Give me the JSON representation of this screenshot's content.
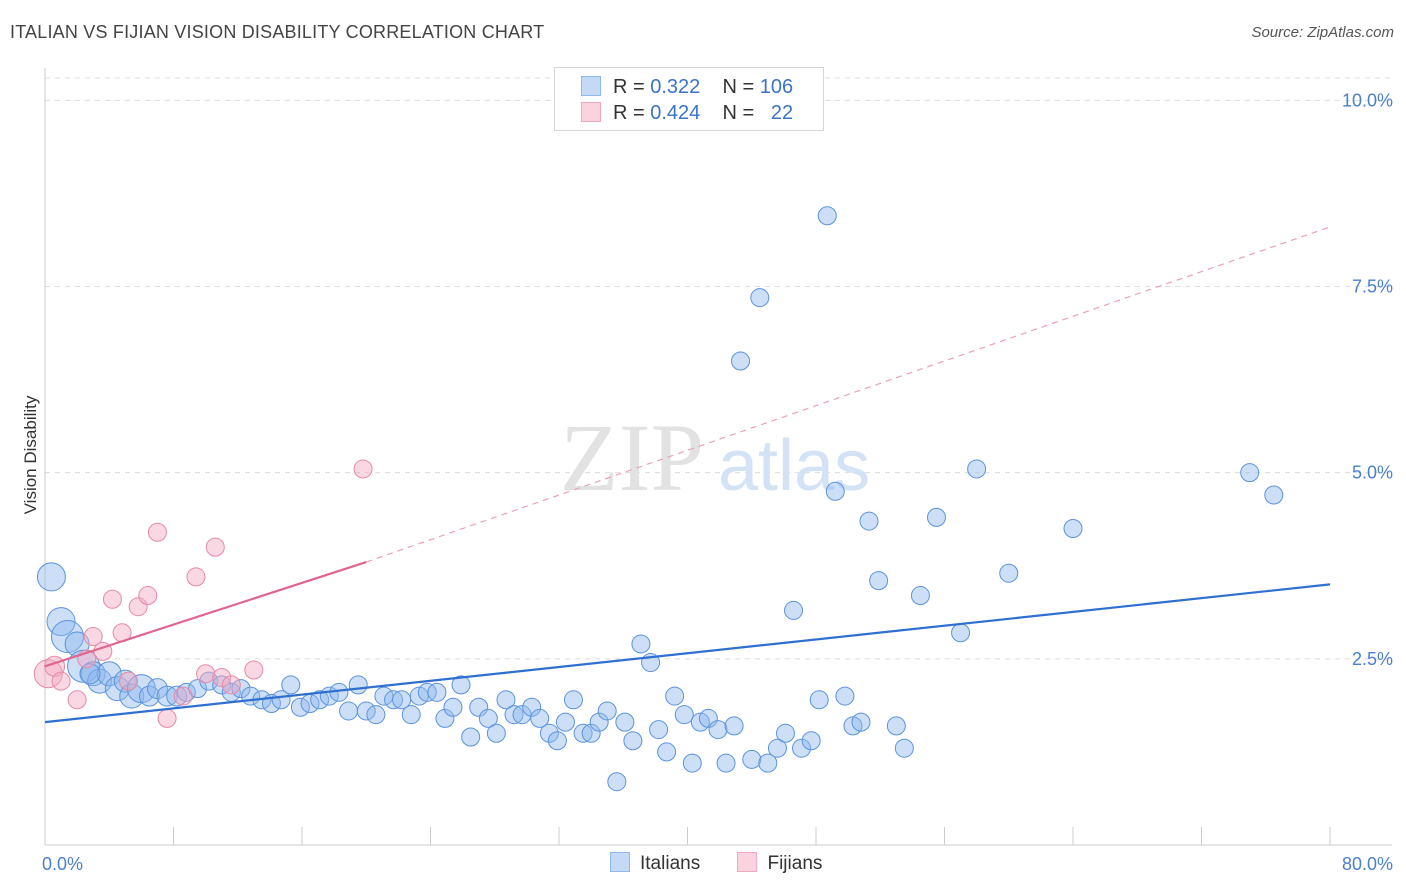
{
  "header": {
    "title": "ITALIAN VS FIJIAN VISION DISABILITY CORRELATION CHART",
    "source": "Source: ZipAtlas.com"
  },
  "watermark": {
    "zip": "ZIP",
    "atlas": "atlas"
  },
  "legend": {
    "rows": [
      {
        "r_label": "R =",
        "r_value": "0.322",
        "n_label": "N =",
        "n_value": "106",
        "color": "#8fb8ee"
      },
      {
        "r_label": "R =",
        "r_value": "0.424",
        "n_label": "N =",
        "n_value": "22",
        "color": "#f4a8c0"
      }
    ]
  },
  "bottom_legend": {
    "items": [
      {
        "label": "Italians",
        "color": "#8fb8ee"
      },
      {
        "label": "Fijians",
        "color": "#f4a8c0"
      }
    ]
  },
  "chart_data": {
    "type": "scatter",
    "title": "ITALIAN VS FIJIAN VISION DISABILITY CORRELATION CHART",
    "xlabel": "",
    "ylabel": "Vision Disability",
    "xlim": [
      0,
      80
    ],
    "ylim": [
      0,
      10.3
    ],
    "x_tick_labels": [
      "0.0%",
      "80.0%"
    ],
    "y_ticks": [
      2.5,
      5.0,
      7.5,
      10.0
    ],
    "y_tick_labels": [
      "2.5%",
      "5.0%",
      "7.5%",
      "10.0%"
    ],
    "grid": true,
    "legend_position": "top-center",
    "series": [
      {
        "name": "Italians",
        "color": "#8fb8ee",
        "stroke": "#5b93dc",
        "trend": {
          "x": [
            0,
            80
          ],
          "y": [
            1.65,
            3.5
          ]
        },
        "points": [
          [
            0.4,
            3.6,
            14
          ],
          [
            1.0,
            3.0,
            14
          ],
          [
            1.4,
            2.8,
            16
          ],
          [
            2.0,
            2.7,
            12
          ],
          [
            2.4,
            2.4,
            16
          ],
          [
            3.0,
            2.3,
            12
          ],
          [
            3.4,
            2.2,
            12
          ],
          [
            4.0,
            2.3,
            12
          ],
          [
            4.5,
            2.1,
            12
          ],
          [
            5.0,
            2.2,
            11
          ],
          [
            5.4,
            2.0,
            12
          ],
          [
            6.0,
            2.1,
            14
          ],
          [
            6.5,
            2.0,
            10
          ],
          [
            7.0,
            2.1,
            10
          ],
          [
            7.6,
            2.0,
            10
          ],
          [
            8.2,
            2.0,
            10
          ],
          [
            8.8,
            2.05,
            9
          ],
          [
            9.5,
            2.1,
            9
          ],
          [
            10.2,
            2.2,
            9
          ],
          [
            11.0,
            2.15,
            9
          ],
          [
            11.6,
            2.05,
            9
          ],
          [
            12.2,
            2.1,
            9
          ],
          [
            12.8,
            2.0,
            9
          ],
          [
            13.5,
            1.95,
            9
          ],
          [
            14.1,
            1.9,
            9
          ],
          [
            14.7,
            1.95,
            9
          ],
          [
            15.3,
            2.15,
            9
          ],
          [
            15.9,
            1.85,
            9
          ],
          [
            16.5,
            1.9,
            9
          ],
          [
            17.1,
            1.95,
            9
          ],
          [
            17.7,
            2.0,
            9
          ],
          [
            18.3,
            2.05,
            9
          ],
          [
            18.9,
            1.8,
            9
          ],
          [
            19.5,
            2.15,
            9
          ],
          [
            20.0,
            1.8,
            9
          ],
          [
            20.6,
            1.75,
            9
          ],
          [
            21.1,
            2.0,
            9
          ],
          [
            21.7,
            1.95,
            9
          ],
          [
            22.2,
            1.95,
            9
          ],
          [
            22.8,
            1.75,
            9
          ],
          [
            23.3,
            2.0,
            9
          ],
          [
            23.8,
            2.05,
            9
          ],
          [
            24.4,
            2.05,
            9
          ],
          [
            24.9,
            1.7,
            9
          ],
          [
            25.4,
            1.85,
            9
          ],
          [
            25.9,
            2.15,
            9
          ],
          [
            26.5,
            1.45,
            9
          ],
          [
            27.0,
            1.85,
            9
          ],
          [
            27.6,
            1.7,
            9
          ],
          [
            28.1,
            1.5,
            9
          ],
          [
            28.7,
            1.95,
            9
          ],
          [
            29.2,
            1.75,
            9
          ],
          [
            29.7,
            1.75,
            9
          ],
          [
            30.3,
            1.85,
            9
          ],
          [
            30.8,
            1.7,
            9
          ],
          [
            31.4,
            1.5,
            9
          ],
          [
            31.9,
            1.4,
            9
          ],
          [
            32.4,
            1.65,
            9
          ],
          [
            32.9,
            1.95,
            9
          ],
          [
            33.5,
            1.5,
            9
          ],
          [
            34.0,
            1.5,
            9
          ],
          [
            34.5,
            1.65,
            9
          ],
          [
            35.0,
            1.8,
            9
          ],
          [
            35.6,
            0.85,
            9
          ],
          [
            36.1,
            1.65,
            9
          ],
          [
            36.6,
            1.4,
            9
          ],
          [
            37.1,
            2.7,
            9
          ],
          [
            37.7,
            2.45,
            9
          ],
          [
            38.2,
            1.55,
            9
          ],
          [
            38.7,
            1.25,
            9
          ],
          [
            39.2,
            2.0,
            9
          ],
          [
            39.8,
            1.75,
            9
          ],
          [
            40.3,
            1.1,
            9
          ],
          [
            40.8,
            1.65,
            9
          ],
          [
            41.3,
            1.7,
            9
          ],
          [
            41.9,
            1.55,
            9
          ],
          [
            42.4,
            1.1,
            9
          ],
          [
            42.9,
            1.6,
            9
          ],
          [
            43.3,
            6.5,
            9
          ],
          [
            44.0,
            1.15,
            9
          ],
          [
            44.5,
            7.35,
            9
          ],
          [
            45.0,
            1.1,
            9
          ],
          [
            45.6,
            1.3,
            9
          ],
          [
            46.1,
            1.5,
            9
          ],
          [
            46.6,
            3.15,
            9
          ],
          [
            47.1,
            1.3,
            9
          ],
          [
            47.7,
            1.4,
            9
          ],
          [
            48.2,
            1.95,
            9
          ],
          [
            48.7,
            8.45,
            9
          ],
          [
            49.2,
            4.75,
            9
          ],
          [
            49.8,
            2.0,
            9
          ],
          [
            50.3,
            1.6,
            9
          ],
          [
            50.8,
            1.65,
            9
          ],
          [
            51.3,
            4.35,
            9
          ],
          [
            51.9,
            3.55,
            9
          ],
          [
            53.0,
            1.6,
            9
          ],
          [
            53.5,
            1.3,
            9
          ],
          [
            54.5,
            3.35,
            9
          ],
          [
            55.5,
            4.4,
            9
          ],
          [
            57.0,
            2.85,
            9
          ],
          [
            58.0,
            5.05,
            9
          ],
          [
            60.0,
            3.65,
            9
          ],
          [
            64.0,
            4.25,
            9
          ],
          [
            75.0,
            5.0,
            9
          ],
          [
            76.5,
            4.7,
            9
          ],
          [
            2.8,
            2.3,
            10
          ]
        ]
      },
      {
        "name": "Fijians",
        "color": "#f4a8c0",
        "stroke": "#e68aa6",
        "trend": {
          "x": [
            0,
            20
          ],
          "y": [
            2.4,
            3.8
          ]
        },
        "trend_ext": {
          "x": [
            20,
            80
          ],
          "y": [
            3.8,
            8.3
          ]
        },
        "points": [
          [
            0.2,
            2.3,
            14
          ],
          [
            0.6,
            2.4,
            10
          ],
          [
            1.0,
            2.2,
            9
          ],
          [
            2.0,
            1.95,
            9
          ],
          [
            2.6,
            2.5,
            9
          ],
          [
            3.0,
            2.8,
            9
          ],
          [
            3.6,
            2.6,
            9
          ],
          [
            4.2,
            3.3,
            9
          ],
          [
            4.8,
            2.85,
            9
          ],
          [
            5.2,
            2.2,
            9
          ],
          [
            5.8,
            3.2,
            9
          ],
          [
            6.4,
            3.35,
            9
          ],
          [
            7.0,
            4.2,
            9
          ],
          [
            7.6,
            1.7,
            9
          ],
          [
            8.6,
            2.0,
            9
          ],
          [
            9.4,
            3.6,
            9
          ],
          [
            10.0,
            2.3,
            9
          ],
          [
            10.6,
            4.0,
            9
          ],
          [
            11.0,
            2.25,
            9
          ],
          [
            11.6,
            2.15,
            9
          ],
          [
            13.0,
            2.35,
            9
          ],
          [
            19.8,
            5.05,
            9
          ]
        ]
      }
    ]
  }
}
